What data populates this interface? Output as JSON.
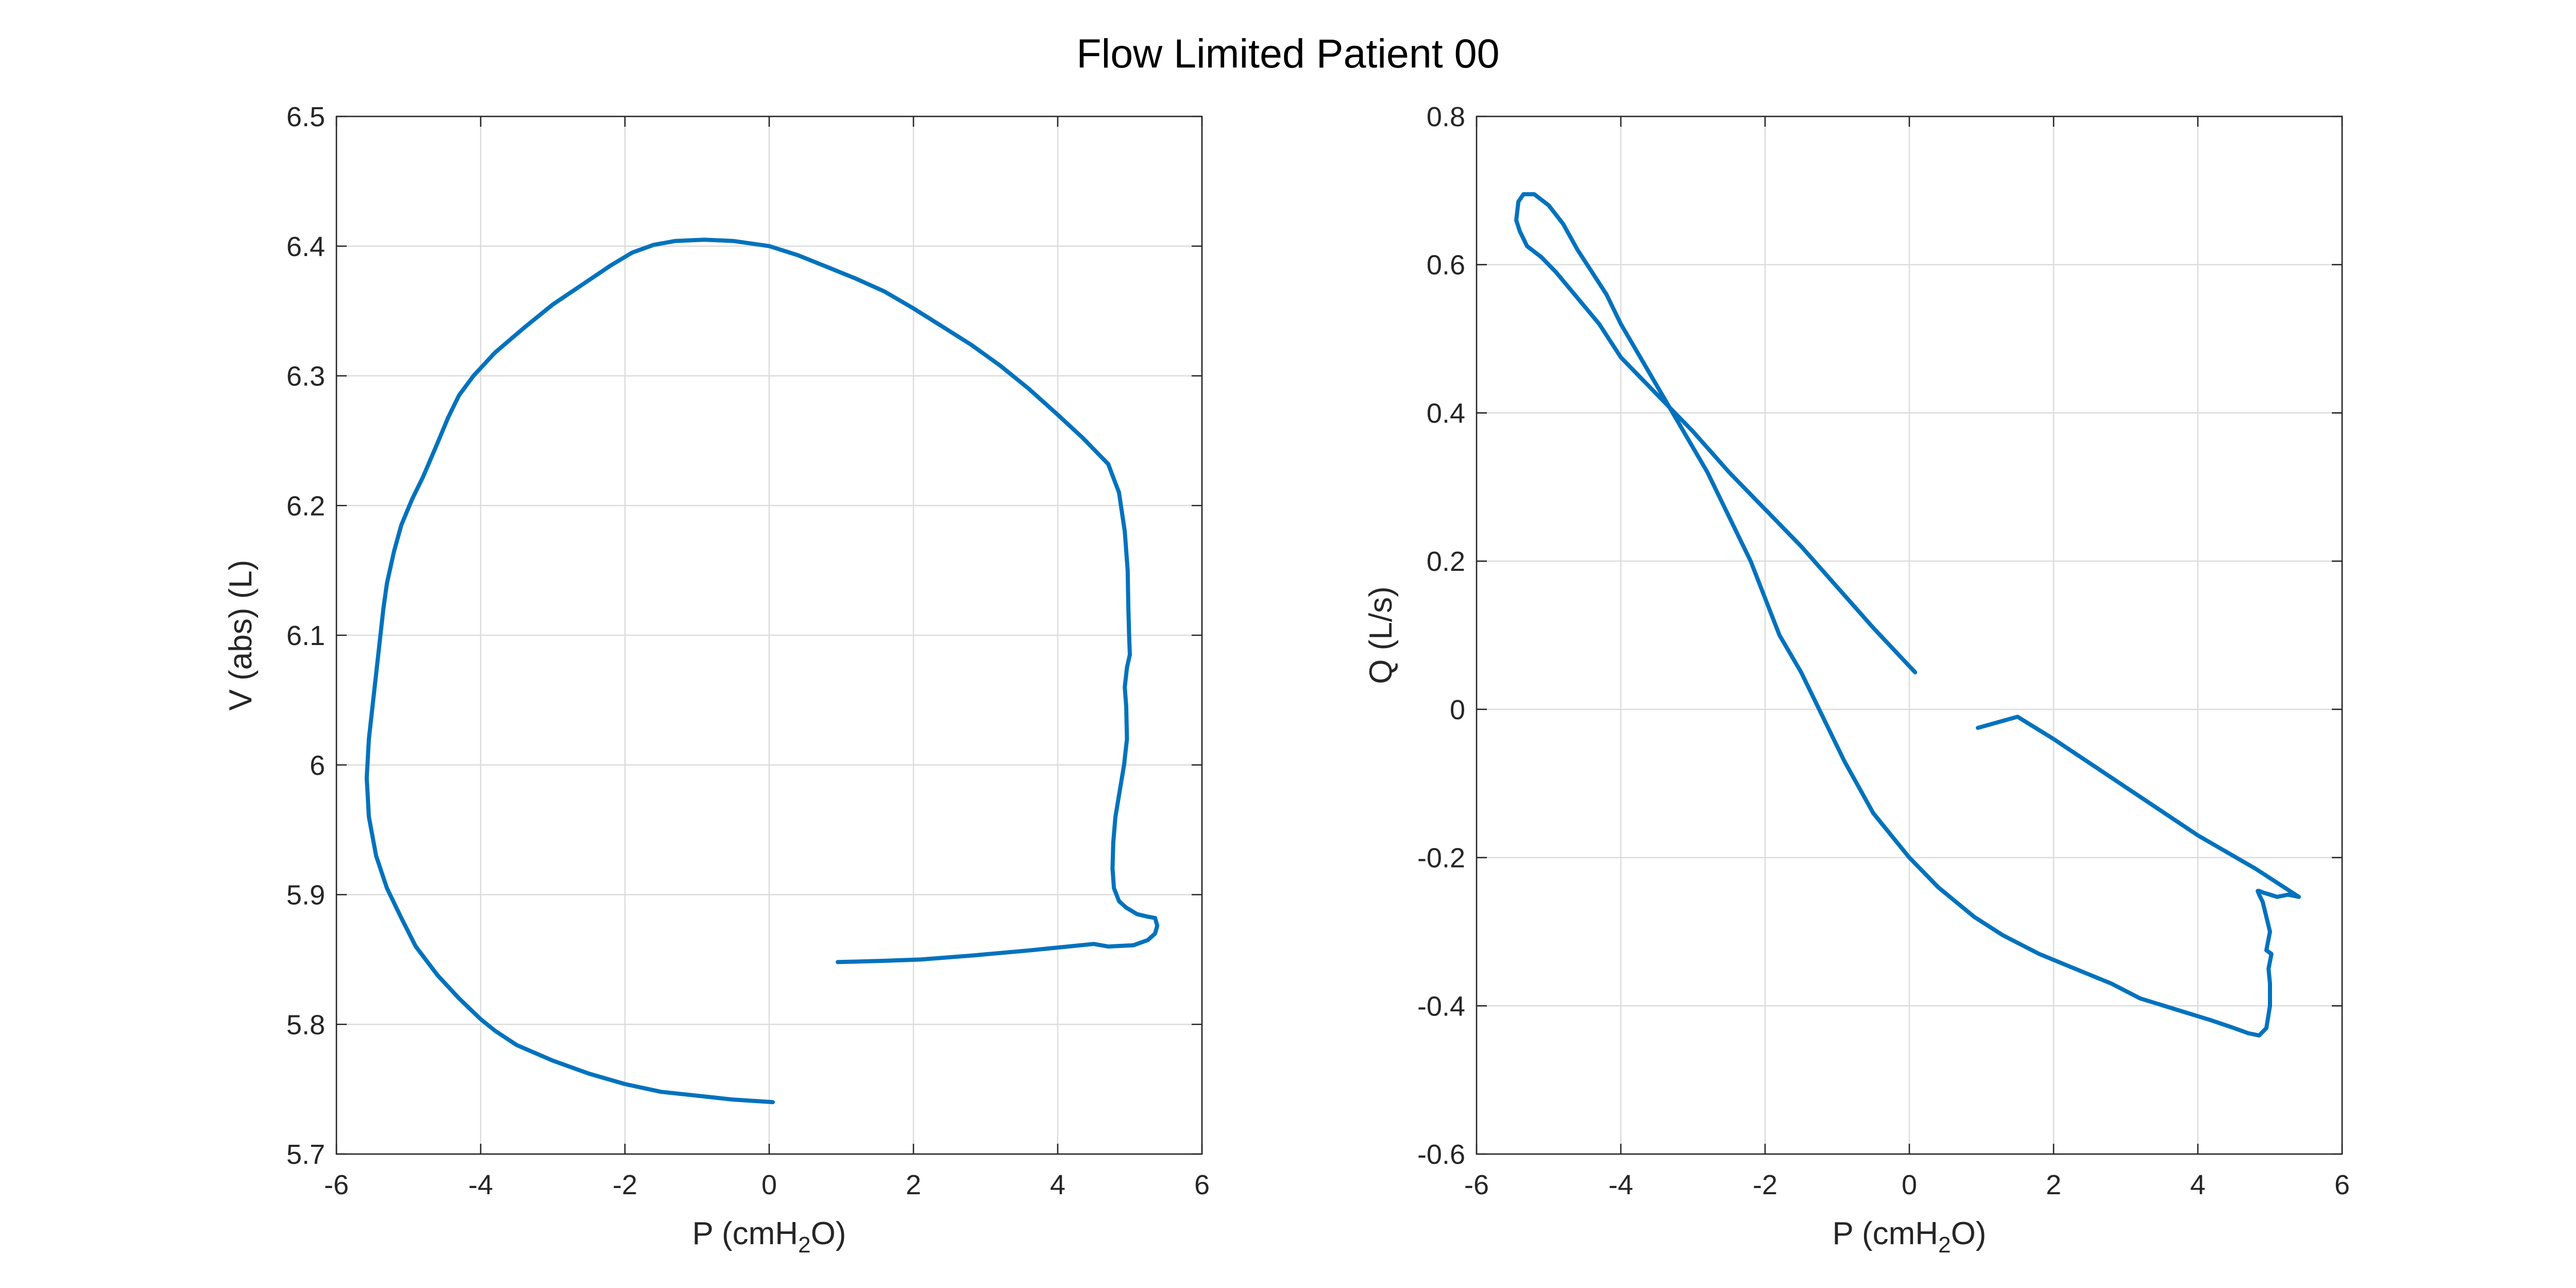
{
  "figure": {
    "title": "Flow Limited Patient 00"
  },
  "chart_data": [
    {
      "type": "line",
      "xlabel": "P (cmH2O)",
      "xlabel_parts": {
        "base": "P (cmH",
        "sub": "2",
        "tail": "O)"
      },
      "ylabel": "V (abs) (L)",
      "xlim": [
        -6,
        6
      ],
      "ylim": [
        5.7,
        6.5
      ],
      "xticks": [
        -6,
        -4,
        -2,
        0,
        2,
        4,
        6
      ],
      "xtick_labels": [
        "-6",
        "-4",
        "-2",
        "0",
        "2",
        "4",
        "6"
      ],
      "yticks": [
        5.7,
        5.8,
        5.9,
        6.0,
        6.1,
        6.2,
        6.3,
        6.4,
        6.5
      ],
      "ytick_labels": [
        "5.7",
        "5.8",
        "5.9",
        "6",
        "6.1",
        "6.2",
        "6.3",
        "6.4",
        "6.5"
      ],
      "grid": true,
      "series": [
        {
          "color": "#0072BD",
          "x": [
            0.05,
            -0.5,
            -1.0,
            -1.5,
            -2.0,
            -2.5,
            -3.0,
            -3.5,
            -3.8,
            -4.0,
            -4.3,
            -4.6,
            -4.9,
            -5.1,
            -5.3,
            -5.45,
            -5.55,
            -5.58,
            -5.55,
            -5.5,
            -5.45,
            -5.4,
            -5.35,
            -5.3,
            -5.2,
            -5.1,
            -4.95,
            -4.8,
            -4.6,
            -4.45,
            -4.3,
            -4.1,
            -3.8,
            -3.4,
            -3.0,
            -2.6,
            -2.2,
            -1.9,
            -1.6,
            -1.3,
            -0.9,
            -0.5,
            0.0,
            0.4,
            0.8,
            1.2,
            1.6,
            2.0,
            2.4,
            2.8,
            3.2,
            3.6,
            4.0,
            4.35,
            4.7,
            4.85,
            4.93,
            4.97,
            4.98,
            4.99,
            5.0,
            4.96,
            4.93,
            4.95,
            4.96,
            4.92,
            4.86,
            4.8,
            4.77,
            4.76,
            4.78,
            4.85,
            4.95,
            5.1,
            5.25,
            5.35,
            5.38,
            5.35,
            5.25,
            5.05,
            4.7,
            4.5,
            3.6,
            2.8,
            2.1,
            1.6,
            0.95
          ],
          "y": [
            5.74,
            5.742,
            5.745,
            5.748,
            5.754,
            5.762,
            5.772,
            5.784,
            5.795,
            5.804,
            5.82,
            5.838,
            5.86,
            5.882,
            5.905,
            5.93,
            5.96,
            5.99,
            6.02,
            6.045,
            6.07,
            6.095,
            6.12,
            6.14,
            6.165,
            6.185,
            6.205,
            6.222,
            6.248,
            6.268,
            6.285,
            6.3,
            6.318,
            6.337,
            6.355,
            6.37,
            6.385,
            6.395,
            6.401,
            6.404,
            6.405,
            6.404,
            6.4,
            6.393,
            6.384,
            6.375,
            6.365,
            6.352,
            6.338,
            6.324,
            6.308,
            6.29,
            6.27,
            6.252,
            6.232,
            6.21,
            6.18,
            6.15,
            6.12,
            6.1,
            6.085,
            6.075,
            6.06,
            6.045,
            6.02,
            6.0,
            5.98,
            5.96,
            5.94,
            5.92,
            5.905,
            5.895,
            5.89,
            5.885,
            5.883,
            5.882,
            5.876,
            5.87,
            5.865,
            5.861,
            5.86,
            5.862,
            5.857,
            5.853,
            5.85,
            5.849,
            5.848
          ]
        }
      ]
    },
    {
      "type": "line",
      "xlabel": "P (cmH2O)",
      "xlabel_parts": {
        "base": "P (cmH",
        "sub": "2",
        "tail": "O)"
      },
      "ylabel": "Q (L/s)",
      "xlim": [
        -6,
        6
      ],
      "ylim": [
        -0.6,
        0.8
      ],
      "xticks": [
        -6,
        -4,
        -2,
        0,
        2,
        4,
        6
      ],
      "xtick_labels": [
        "-6",
        "-4",
        "-2",
        "0",
        "2",
        "4",
        "6"
      ],
      "yticks": [
        -0.6,
        -0.4,
        -0.2,
        0,
        0.2,
        0.4,
        0.6,
        0.8
      ],
      "ytick_labels": [
        "-0.6",
        "-0.4",
        "-0.2",
        "0",
        "0.2",
        "0.4",
        "0.6",
        "0.8"
      ],
      "grid": true,
      "series": [
        {
          "color": "#0072BD",
          "x": [
            0.08,
            -0.5,
            -1.0,
            -1.5,
            -2.0,
            -2.5,
            -3.0,
            -3.5,
            -4.0,
            -4.3,
            -4.6,
            -4.9,
            -5.1,
            -5.3,
            -5.4,
            -5.45,
            -5.42,
            -5.35,
            -5.2,
            -5.0,
            -4.8,
            -4.6,
            -4.4,
            -4.2,
            -4.0,
            -3.7,
            -3.4,
            -3.1,
            -2.8,
            -2.5,
            -2.2,
            -2.0,
            -1.8,
            -1.5,
            -1.3,
            -1.1,
            -0.9,
            -0.5,
            0.0,
            0.4,
            0.9,
            1.3,
            1.8,
            2.3,
            2.8,
            3.2,
            3.7,
            4.2,
            4.5,
            4.7,
            4.85,
            4.95,
            5.0,
            5.0,
            4.98,
            5.02,
            4.95,
            5.0,
            4.95,
            4.9,
            4.85,
            4.83,
            4.85,
            4.9,
            5.0,
            5.1,
            5.25,
            5.4,
            4.8,
            4.0,
            3.0,
            2.0,
            1.5,
            0.95
          ],
          "y": [
            0.05,
            0.11,
            0.165,
            0.22,
            0.27,
            0.32,
            0.375,
            0.425,
            0.475,
            0.52,
            0.555,
            0.59,
            0.61,
            0.625,
            0.645,
            0.66,
            0.685,
            0.695,
            0.695,
            0.68,
            0.655,
            0.62,
            0.59,
            0.56,
            0.52,
            0.47,
            0.42,
            0.37,
            0.32,
            0.26,
            0.2,
            0.15,
            0.1,
            0.05,
            0.01,
            -0.03,
            -0.07,
            -0.14,
            -0.2,
            -0.24,
            -0.28,
            -0.305,
            -0.33,
            -0.35,
            -0.37,
            -0.39,
            -0.405,
            -0.42,
            -0.43,
            -0.437,
            -0.44,
            -0.43,
            -0.4,
            -0.37,
            -0.35,
            -0.33,
            -0.325,
            -0.3,
            -0.28,
            -0.26,
            -0.25,
            -0.245,
            -0.245,
            -0.247,
            -0.25,
            -0.253,
            -0.25,
            -0.253,
            -0.215,
            -0.17,
            -0.105,
            -0.04,
            -0.01,
            -0.025
          ]
        }
      ]
    }
  ]
}
